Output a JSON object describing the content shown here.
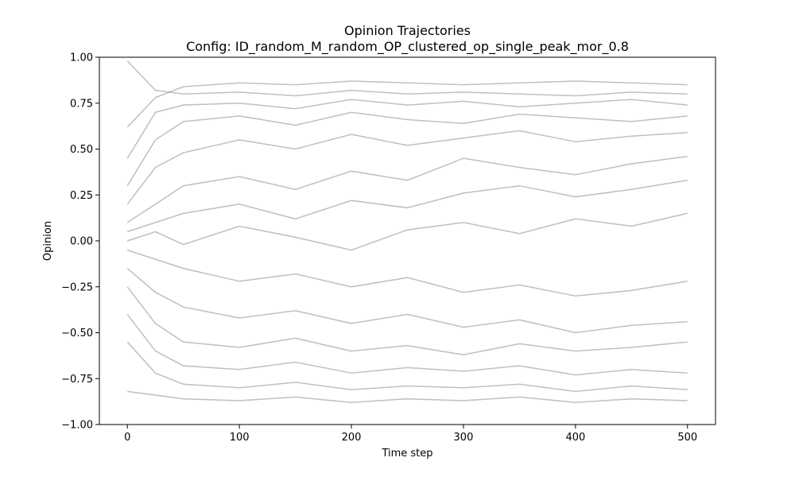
{
  "chart_data": {
    "type": "line",
    "title": "Opinion Trajectories",
    "subtitle": "Config: ID_random_M_random_OP_clustered_op_single_peak_mor_0.8",
    "xlabel": "Time step",
    "ylabel": "Opinion",
    "xlim": [
      -25,
      525
    ],
    "ylim": [
      -1.0,
      1.0
    ],
    "x_ticks": [
      0,
      100,
      200,
      300,
      400,
      500
    ],
    "y_ticks": [
      -1.0,
      -0.75,
      -0.5,
      -0.25,
      0.0,
      0.25,
      0.5,
      0.75,
      1.0
    ],
    "x_tick_labels": [
      "0",
      "100",
      "200",
      "300",
      "400",
      "500"
    ],
    "y_tick_labels": [
      "−1.00",
      "−0.75",
      "−0.50",
      "−0.25",
      "0.00",
      "0.25",
      "0.50",
      "0.75",
      "1.00"
    ],
    "grid": false,
    "legend": "none",
    "line_color": "#808080",
    "line_alpha": 0.5,
    "series": [
      {
        "x": [
          0,
          25,
          50,
          100,
          150,
          200,
          250,
          300,
          350,
          400,
          450,
          500
        ],
        "values": [
          0.98,
          0.82,
          0.8,
          0.81,
          0.79,
          0.82,
          0.8,
          0.81,
          0.8,
          0.79,
          0.81,
          0.8
        ]
      },
      {
        "x": [
          0,
          25,
          50,
          100,
          150,
          200,
          250,
          300,
          350,
          400,
          450,
          500
        ],
        "values": [
          0.62,
          0.78,
          0.84,
          0.86,
          0.85,
          0.87,
          0.86,
          0.85,
          0.86,
          0.87,
          0.86,
          0.85
        ]
      },
      {
        "x": [
          0,
          25,
          50,
          100,
          150,
          200,
          250,
          300,
          350,
          400,
          450,
          500
        ],
        "values": [
          0.45,
          0.7,
          0.74,
          0.75,
          0.72,
          0.77,
          0.74,
          0.76,
          0.73,
          0.75,
          0.77,
          0.74
        ]
      },
      {
        "x": [
          0,
          25,
          50,
          100,
          150,
          200,
          250,
          300,
          350,
          400,
          450,
          500
        ],
        "values": [
          0.3,
          0.55,
          0.65,
          0.68,
          0.63,
          0.7,
          0.66,
          0.64,
          0.69,
          0.67,
          0.65,
          0.68
        ]
      },
      {
        "x": [
          0,
          25,
          50,
          100,
          150,
          200,
          250,
          300,
          350,
          400,
          450,
          500
        ],
        "values": [
          0.2,
          0.4,
          0.48,
          0.55,
          0.5,
          0.58,
          0.52,
          0.56,
          0.6,
          0.54,
          0.57,
          0.59
        ]
      },
      {
        "x": [
          0,
          25,
          50,
          100,
          150,
          200,
          250,
          300,
          350,
          400,
          450,
          500
        ],
        "values": [
          0.1,
          0.2,
          0.3,
          0.35,
          0.28,
          0.38,
          0.33,
          0.45,
          0.4,
          0.36,
          0.42,
          0.46
        ]
      },
      {
        "x": [
          0,
          25,
          50,
          100,
          150,
          200,
          250,
          300,
          350,
          400,
          450,
          500
        ],
        "values": [
          0.05,
          0.1,
          0.15,
          0.2,
          0.12,
          0.22,
          0.18,
          0.26,
          0.3,
          0.24,
          0.28,
          0.33
        ]
      },
      {
        "x": [
          0,
          25,
          50,
          100,
          150,
          200,
          250,
          300,
          350,
          400,
          450,
          500
        ],
        "values": [
          0.0,
          0.05,
          -0.02,
          0.08,
          0.02,
          -0.05,
          0.06,
          0.1,
          0.04,
          0.12,
          0.08,
          0.15
        ]
      },
      {
        "x": [
          0,
          25,
          50,
          100,
          150,
          200,
          250,
          300,
          350,
          400,
          450,
          500
        ],
        "values": [
          -0.05,
          -0.1,
          -0.15,
          -0.22,
          -0.18,
          -0.25,
          -0.2,
          -0.28,
          -0.24,
          -0.3,
          -0.27,
          -0.22
        ]
      },
      {
        "x": [
          0,
          25,
          50,
          100,
          150,
          200,
          250,
          300,
          350,
          400,
          450,
          500
        ],
        "values": [
          -0.15,
          -0.28,
          -0.36,
          -0.42,
          -0.38,
          -0.45,
          -0.4,
          -0.47,
          -0.43,
          -0.5,
          -0.46,
          -0.44
        ]
      },
      {
        "x": [
          0,
          25,
          50,
          100,
          150,
          200,
          250,
          300,
          350,
          400,
          450,
          500
        ],
        "values": [
          -0.25,
          -0.45,
          -0.55,
          -0.58,
          -0.53,
          -0.6,
          -0.57,
          -0.62,
          -0.56,
          -0.6,
          -0.58,
          -0.55
        ]
      },
      {
        "x": [
          0,
          25,
          50,
          100,
          150,
          200,
          250,
          300,
          350,
          400,
          450,
          500
        ],
        "values": [
          -0.4,
          -0.6,
          -0.68,
          -0.7,
          -0.66,
          -0.72,
          -0.69,
          -0.71,
          -0.68,
          -0.73,
          -0.7,
          -0.72
        ]
      },
      {
        "x": [
          0,
          25,
          50,
          100,
          150,
          200,
          250,
          300,
          350,
          400,
          450,
          500
        ],
        "values": [
          -0.55,
          -0.72,
          -0.78,
          -0.8,
          -0.77,
          -0.81,
          -0.79,
          -0.8,
          -0.78,
          -0.82,
          -0.79,
          -0.81
        ]
      },
      {
        "x": [
          0,
          25,
          50,
          100,
          150,
          200,
          250,
          300,
          350,
          400,
          450,
          500
        ],
        "values": [
          -0.82,
          -0.84,
          -0.86,
          -0.87,
          -0.85,
          -0.88,
          -0.86,
          -0.87,
          -0.85,
          -0.88,
          -0.86,
          -0.87
        ]
      }
    ]
  }
}
